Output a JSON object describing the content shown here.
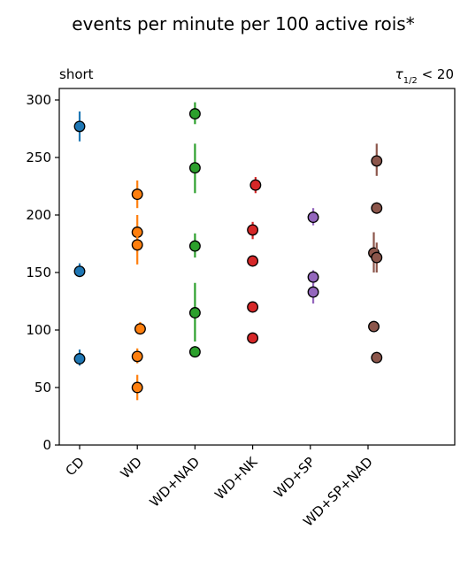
{
  "chart_data": {
    "type": "scatter",
    "title": "events per minute per 100 active rois*",
    "subtitle_left": "short",
    "subtitle_right": "τ1/2 < 20",
    "xlabel": "",
    "ylabel": "",
    "ylim": [
      0,
      310
    ],
    "yticks": [
      0,
      50,
      100,
      150,
      200,
      250,
      300
    ],
    "categories": [
      "CD",
      "WD",
      "WD+NAD",
      "WD+NK",
      "WD+SP",
      "WD+SP+NAD"
    ],
    "grid": false,
    "series": [
      {
        "category": "CD",
        "color": "#1f77b4",
        "points": [
          {
            "x": 0.0,
            "y": 277,
            "err_low": 264,
            "err_high": 290
          },
          {
            "x": 0.0,
            "y": 151,
            "err_low": 146,
            "err_high": 158
          },
          {
            "x": 0.0,
            "y": 75,
            "err_low": 69,
            "err_high": 83
          }
        ]
      },
      {
        "category": "WD",
        "color": "#ff7f0e",
        "points": [
          {
            "x": 0.0,
            "y": 218,
            "err_low": 206,
            "err_high": 230
          },
          {
            "x": 0.0,
            "y": 185,
            "err_low": 168,
            "err_high": 200
          },
          {
            "x": 0.0,
            "y": 174,
            "err_low": 157,
            "err_high": 185
          },
          {
            "x": 0.05,
            "y": 101,
            "err_low": 96,
            "err_high": 107
          },
          {
            "x": 0.0,
            "y": 77,
            "err_low": 71,
            "err_high": 84
          },
          {
            "x": 0.0,
            "y": 50,
            "err_low": 39,
            "err_high": 61
          }
        ]
      },
      {
        "category": "WD+NAD",
        "color": "#2ca02c",
        "points": [
          {
            "x": 0.0,
            "y": 288,
            "err_low": 279,
            "err_high": 298
          },
          {
            "x": 0.0,
            "y": 241,
            "err_low": 219,
            "err_high": 262
          },
          {
            "x": 0.0,
            "y": 173,
            "err_low": 163,
            "err_high": 184
          },
          {
            "x": 0.0,
            "y": 115,
            "err_low": 90,
            "err_high": 141
          },
          {
            "x": 0.0,
            "y": 81,
            "err_low": 77,
            "err_high": 86
          }
        ]
      },
      {
        "category": "WD+NK",
        "color": "#d62728",
        "points": [
          {
            "x": 0.05,
            "y": 226,
            "err_low": 219,
            "err_high": 233
          },
          {
            "x": 0.0,
            "y": 187,
            "err_low": 179,
            "err_high": 194
          },
          {
            "x": 0.0,
            "y": 160,
            "err_low": 156,
            "err_high": 164
          },
          {
            "x": 0.0,
            "y": 120,
            "err_low": 116,
            "err_high": 124
          },
          {
            "x": 0.0,
            "y": 93,
            "err_low": 89,
            "err_high": 97
          }
        ]
      },
      {
        "category": "WD+SP",
        "color": "#9467bd",
        "points": [
          {
            "x": 0.05,
            "y": 198,
            "err_low": 191,
            "err_high": 206
          },
          {
            "x": 0.05,
            "y": 146,
            "err_low": 140,
            "err_high": 152
          },
          {
            "x": 0.05,
            "y": 133,
            "err_low": 123,
            "err_high": 141
          }
        ]
      },
      {
        "category": "WD+SP+NAD",
        "color": "#8c564b",
        "points": [
          {
            "x": 0.15,
            "y": 247,
            "err_low": 234,
            "err_high": 262
          },
          {
            "x": 0.15,
            "y": 206,
            "err_low": 201,
            "err_high": 211
          },
          {
            "x": 0.1,
            "y": 167,
            "err_low": 150,
            "err_high": 185
          },
          {
            "x": 0.15,
            "y": 163,
            "err_low": 150,
            "err_high": 176
          },
          {
            "x": 0.1,
            "y": 103,
            "err_low": 99,
            "err_high": 107
          },
          {
            "x": 0.15,
            "y": 76,
            "err_low": 72,
            "err_high": 81
          }
        ]
      }
    ]
  }
}
